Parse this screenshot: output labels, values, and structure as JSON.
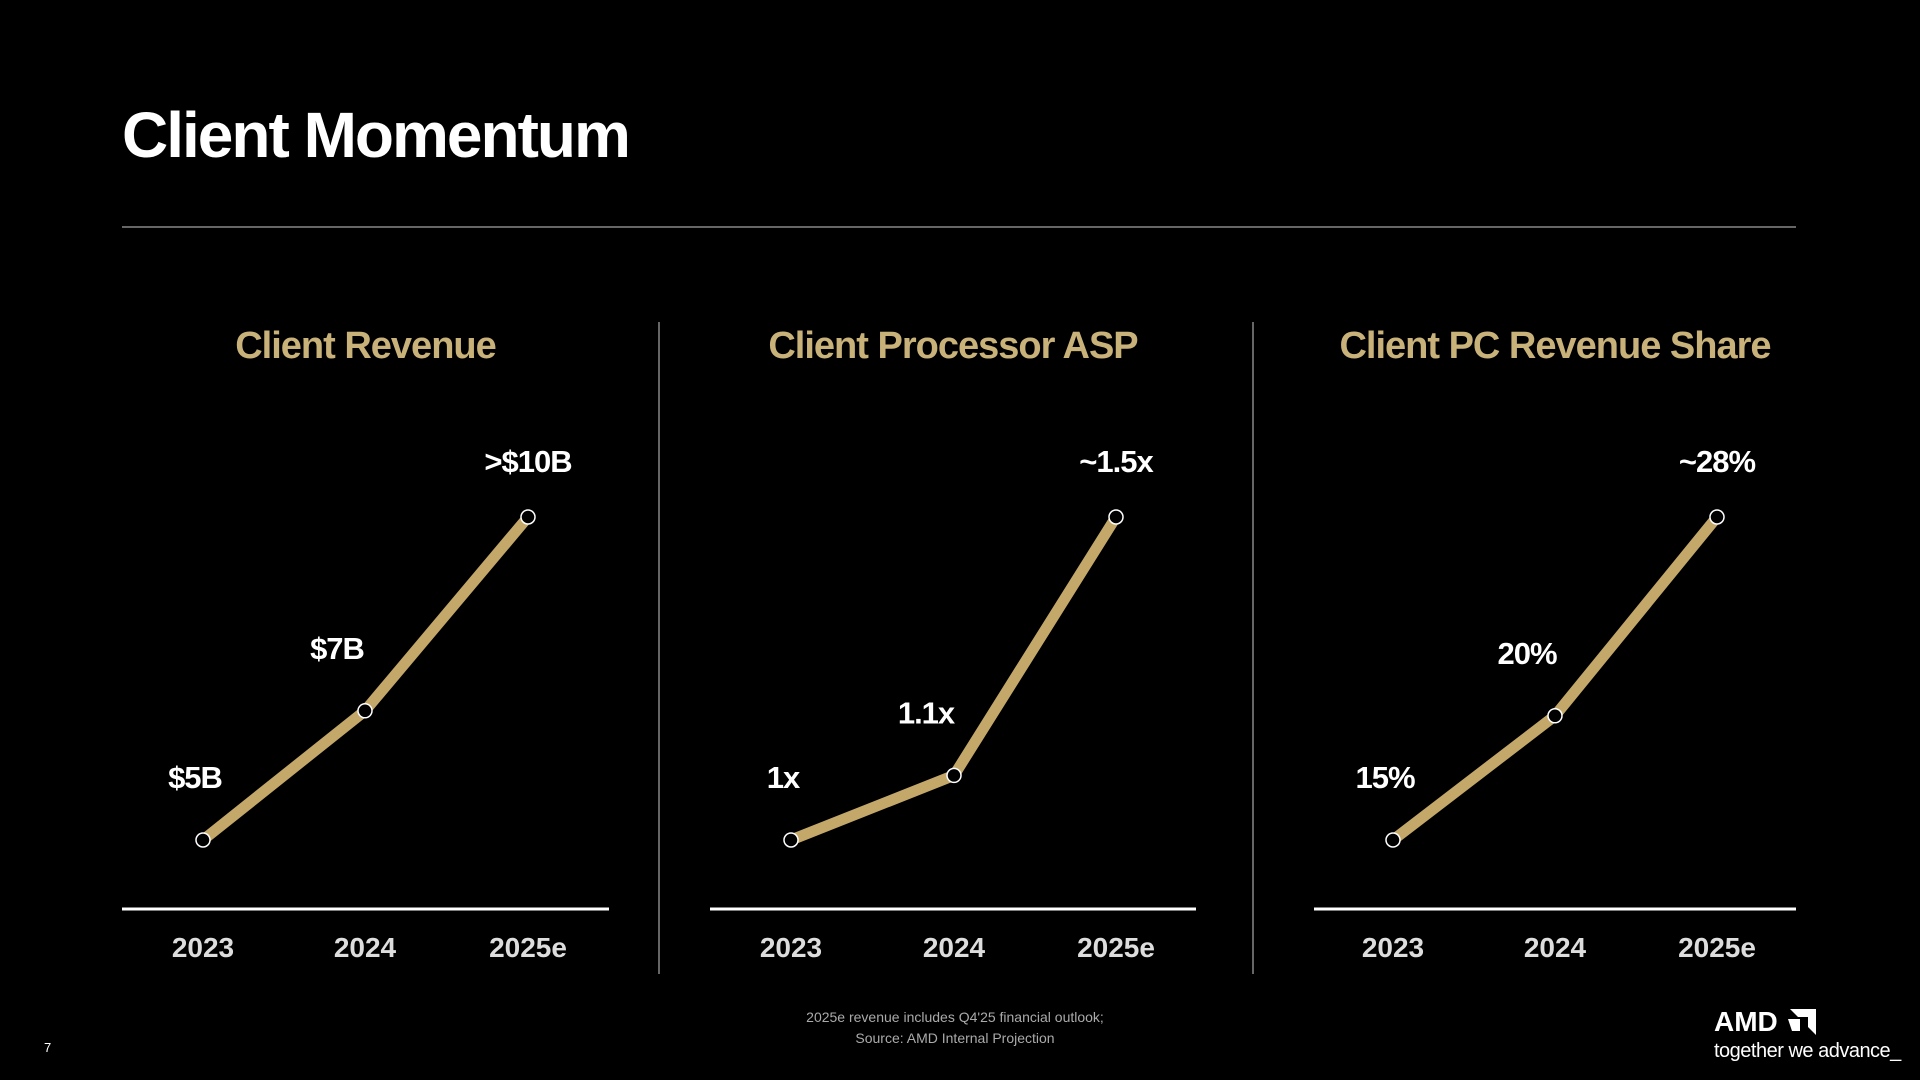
{
  "title": "Client Momentum",
  "chart_data": [
    {
      "type": "line",
      "title": "Client Revenue",
      "categories": [
        "2023",
        "2024",
        "2025e"
      ],
      "values": [
        5,
        7,
        10
      ],
      "value_labels": [
        "$5B",
        "$7B",
        ">$10B"
      ],
      "color": "#c4a86a"
    },
    {
      "type": "line",
      "title": "Client Processor ASP",
      "categories": [
        "2023",
        "2024",
        "2025e"
      ],
      "values": [
        1,
        1.1,
        1.5
      ],
      "value_labels": [
        "1x",
        "1.1x",
        "~1.5x"
      ],
      "color": "#c4a86a"
    },
    {
      "type": "line",
      "title": "Client PC Revenue Share",
      "categories": [
        "2023",
        "2024",
        "2025e"
      ],
      "values": [
        15,
        20,
        28
      ],
      "value_labels": [
        "15%",
        "20%",
        "~28%"
      ],
      "color": "#c4a86a"
    }
  ],
  "footnote": [
    "2025e revenue includes Q4'25 financial outlook;",
    "Source: AMD Internal Projection"
  ],
  "page_number": "7",
  "logo": {
    "brand": "AMD",
    "tagline": "together we advance_"
  }
}
